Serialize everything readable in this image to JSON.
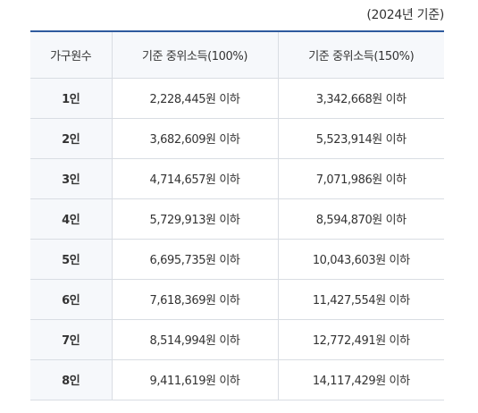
{
  "caption": "(2024년 기준)",
  "table": {
    "headers": [
      "가구원수",
      "기준 중위소득(100%)",
      "기준 중위소득(150%)"
    ],
    "rows": [
      [
        "1인",
        "2,228,445원 이하",
        "3,342,668원 이하"
      ],
      [
        "2인",
        "3,682,609원 이하",
        "5,523,914원 이하"
      ],
      [
        "3인",
        "4,714,657원 이하",
        "7,071,986원 이하"
      ],
      [
        "4인",
        "5,729,913원 이하",
        "8,594,870원 이하"
      ],
      [
        "5인",
        "6,695,735원 이하",
        "10,043,603원 이하"
      ],
      [
        "6인",
        "7,618,369원 이하",
        "11,427,554원 이하"
      ],
      [
        "7인",
        "8,514,994원 이하",
        "12,772,491원 이하"
      ],
      [
        "8인",
        "9,411,619원 이하",
        "14,117,429원 이하"
      ]
    ]
  },
  "colors": {
    "header_border": "#2e5a9e",
    "header_bg": "#f6f8fb",
    "grid": "#d9dde3",
    "text": "#333333"
  }
}
